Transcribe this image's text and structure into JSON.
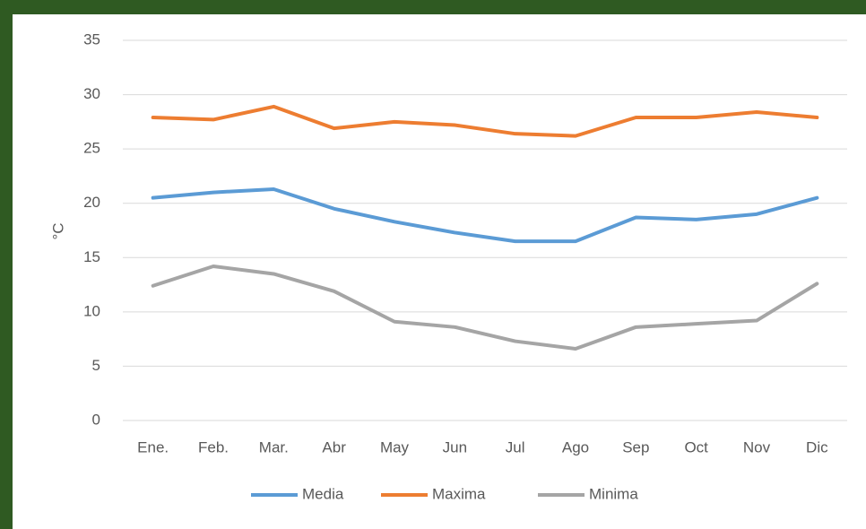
{
  "chart_data": {
    "type": "line",
    "ylabel": "°C",
    "categories": [
      "Ene.",
      "Feb.",
      "Mar.",
      "Abr",
      "May",
      "Jun",
      "Jul",
      "Ago",
      "Sep",
      "Oct",
      "Nov",
      "Dic"
    ],
    "series": [
      {
        "name": "Media",
        "color": "#5b9bd5",
        "values": [
          20.5,
          21.0,
          21.3,
          19.5,
          18.3,
          17.3,
          16.5,
          16.5,
          18.7,
          18.5,
          19.0,
          20.5
        ]
      },
      {
        "name": "Maxima",
        "color": "#ed7d31",
        "values": [
          27.9,
          27.7,
          28.9,
          26.9,
          27.5,
          27.2,
          26.4,
          26.2,
          27.9,
          27.9,
          28.4,
          27.9
        ]
      },
      {
        "name": "Minima",
        "color": "#a5a5a5",
        "values": [
          12.4,
          14.2,
          13.5,
          11.9,
          9.1,
          8.6,
          7.3,
          6.6,
          8.6,
          8.9,
          9.2,
          12.6
        ]
      }
    ],
    "ylim": [
      0,
      35
    ],
    "yticks": [
      0,
      5,
      10,
      15,
      20,
      25,
      30,
      35
    ],
    "grid": true,
    "legend": "bottom"
  }
}
